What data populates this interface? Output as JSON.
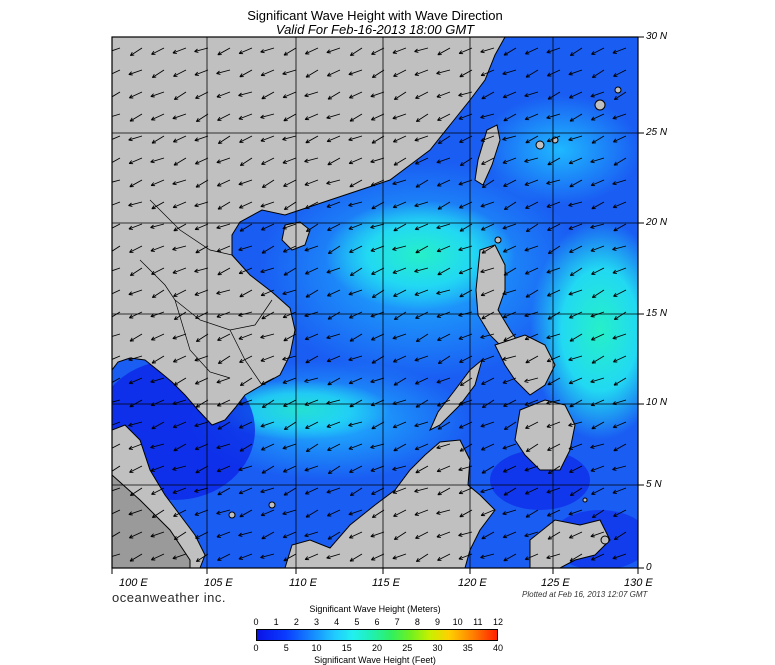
{
  "title": "Significant Wave Height with Wave Direction",
  "subtitle": "Valid For Feb-16-2013 18:00 GMT",
  "lat_labels": [
    "30 N",
    "25 N",
    "20 N",
    "15 N",
    "10 N",
    "5 N",
    "0"
  ],
  "lon_labels": [
    "100 E",
    "105 E",
    "110 E",
    "115 E",
    "120 E",
    "125 E",
    "130 E"
  ],
  "brand": "oceanweather inc.",
  "plotted": "Plotted at Feb 16, 2013 12:07 GMT",
  "legend": {
    "meters_title": "Significant Wave Height (Meters)",
    "meters_ticks": [
      "0",
      "1",
      "2",
      "3",
      "4",
      "5",
      "6",
      "7",
      "8",
      "9",
      "10",
      "11",
      "12"
    ],
    "feet_title": "Significant Wave Height (Feet)",
    "feet_ticks": [
      "0",
      "5",
      "10",
      "15",
      "20",
      "25",
      "30",
      "35",
      "40"
    ]
  },
  "colors": {
    "land": "#c0c0c0",
    "low_wave": "#1e5af5",
    "mid_wave": "#1ecff5",
    "high_wave": "#24e6c0",
    "arrow": "#000000"
  }
}
